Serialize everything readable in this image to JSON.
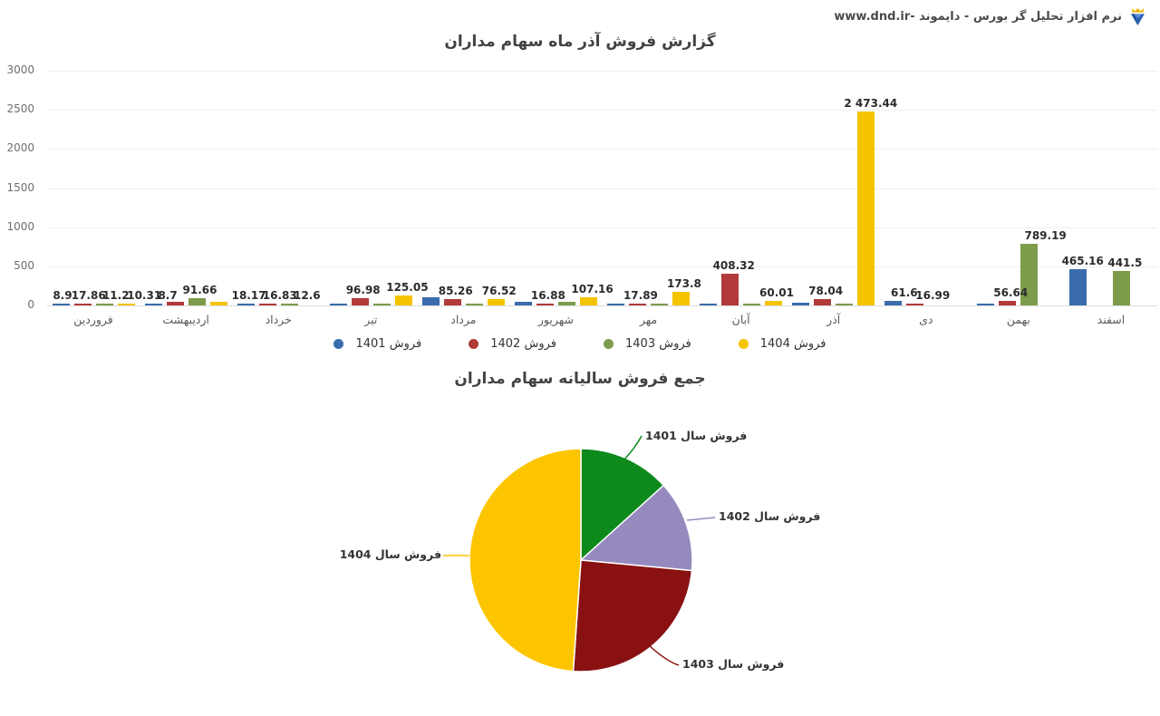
{
  "header": {
    "brand_text": "نرم افزار تحلیل گر بورس - دایموند -www.dnd.ir"
  },
  "chart_data": [
    {
      "type": "bar",
      "title": "گزارش فروش آذر ماه سهام مداران",
      "categories": [
        "فروردین",
        "اردیبهشت",
        "خرداد",
        "تیر",
        "مرداد",
        "شهریور",
        "مهر",
        "آبان",
        "آذر",
        "دی",
        "بهمن",
        "اسفند"
      ],
      "ylim": [
        0,
        3000
      ],
      "y_ticks": [
        0,
        500,
        1000,
        1500,
        2000,
        2500,
        3000
      ],
      "grid": true,
      "legend_position": "bottom",
      "series": [
        {
          "name": "فروش 1401",
          "color": "#3a6cae",
          "values": [
            8.9,
            8.7,
            18.17,
            20,
            110,
            46,
            23,
            25,
            30,
            61.6,
            28,
            465.16
          ],
          "labels": [
            "8.9",
            "8.7",
            "18.17",
            "",
            "",
            "",
            "",
            "",
            "",
            "61.6",
            "",
            "465.16"
          ]
        },
        {
          "name": "فروش 1402",
          "color": "#b23a3a",
          "values": [
            17.86,
            50,
            16.83,
            96.98,
            85.26,
            16.88,
            17.89,
            408.32,
            78.04,
            16.99,
            56.64,
            0
          ],
          "labels": [
            "17.86",
            "",
            "16.83",
            "96.98",
            "85.26",
            "16.88",
            "17.89",
            "408.32",
            "78.04",
            "16.99",
            "56.64",
            ""
          ]
        },
        {
          "name": "فروش 1403",
          "color": "#7e9b4b",
          "values": [
            11.2,
            91.66,
            12.6,
            10,
            9,
            45,
            14,
            15,
            20,
            0,
            789.19,
            441.5
          ],
          "labels": [
            "11.2",
            "91.66",
            "12.6",
            "",
            "",
            "",
            "",
            "",
            "",
            "",
            "789.19",
            "441.5"
          ]
        },
        {
          "name": "فروش 1404",
          "color": "#f5c400",
          "values": [
            10.31,
            45,
            0,
            125.05,
            76.52,
            107.16,
            173.8,
            60.01,
            2473.44,
            0,
            0,
            0
          ],
          "labels": [
            "10.31",
            "",
            "",
            "125.05",
            "76.52",
            "107.16",
            "173.8",
            "60.01",
            "2 473.44",
            "",
            "",
            ""
          ]
        }
      ]
    },
    {
      "type": "pie",
      "title": "جمع فروش سالیانه سهام مداران",
      "slices": [
        {
          "label": "فروش سال 1401",
          "color": "#0e8a1d",
          "percent": 13.3
        },
        {
          "label": "فروش سال 1402",
          "color": "#9689be",
          "percent": 13.2
        },
        {
          "label": "فروش سال 1403",
          "color": "#891111",
          "percent": 24.6
        },
        {
          "label": "فروش سال 1404",
          "color": "#fdc500",
          "percent": 48.9
        }
      ]
    }
  ]
}
